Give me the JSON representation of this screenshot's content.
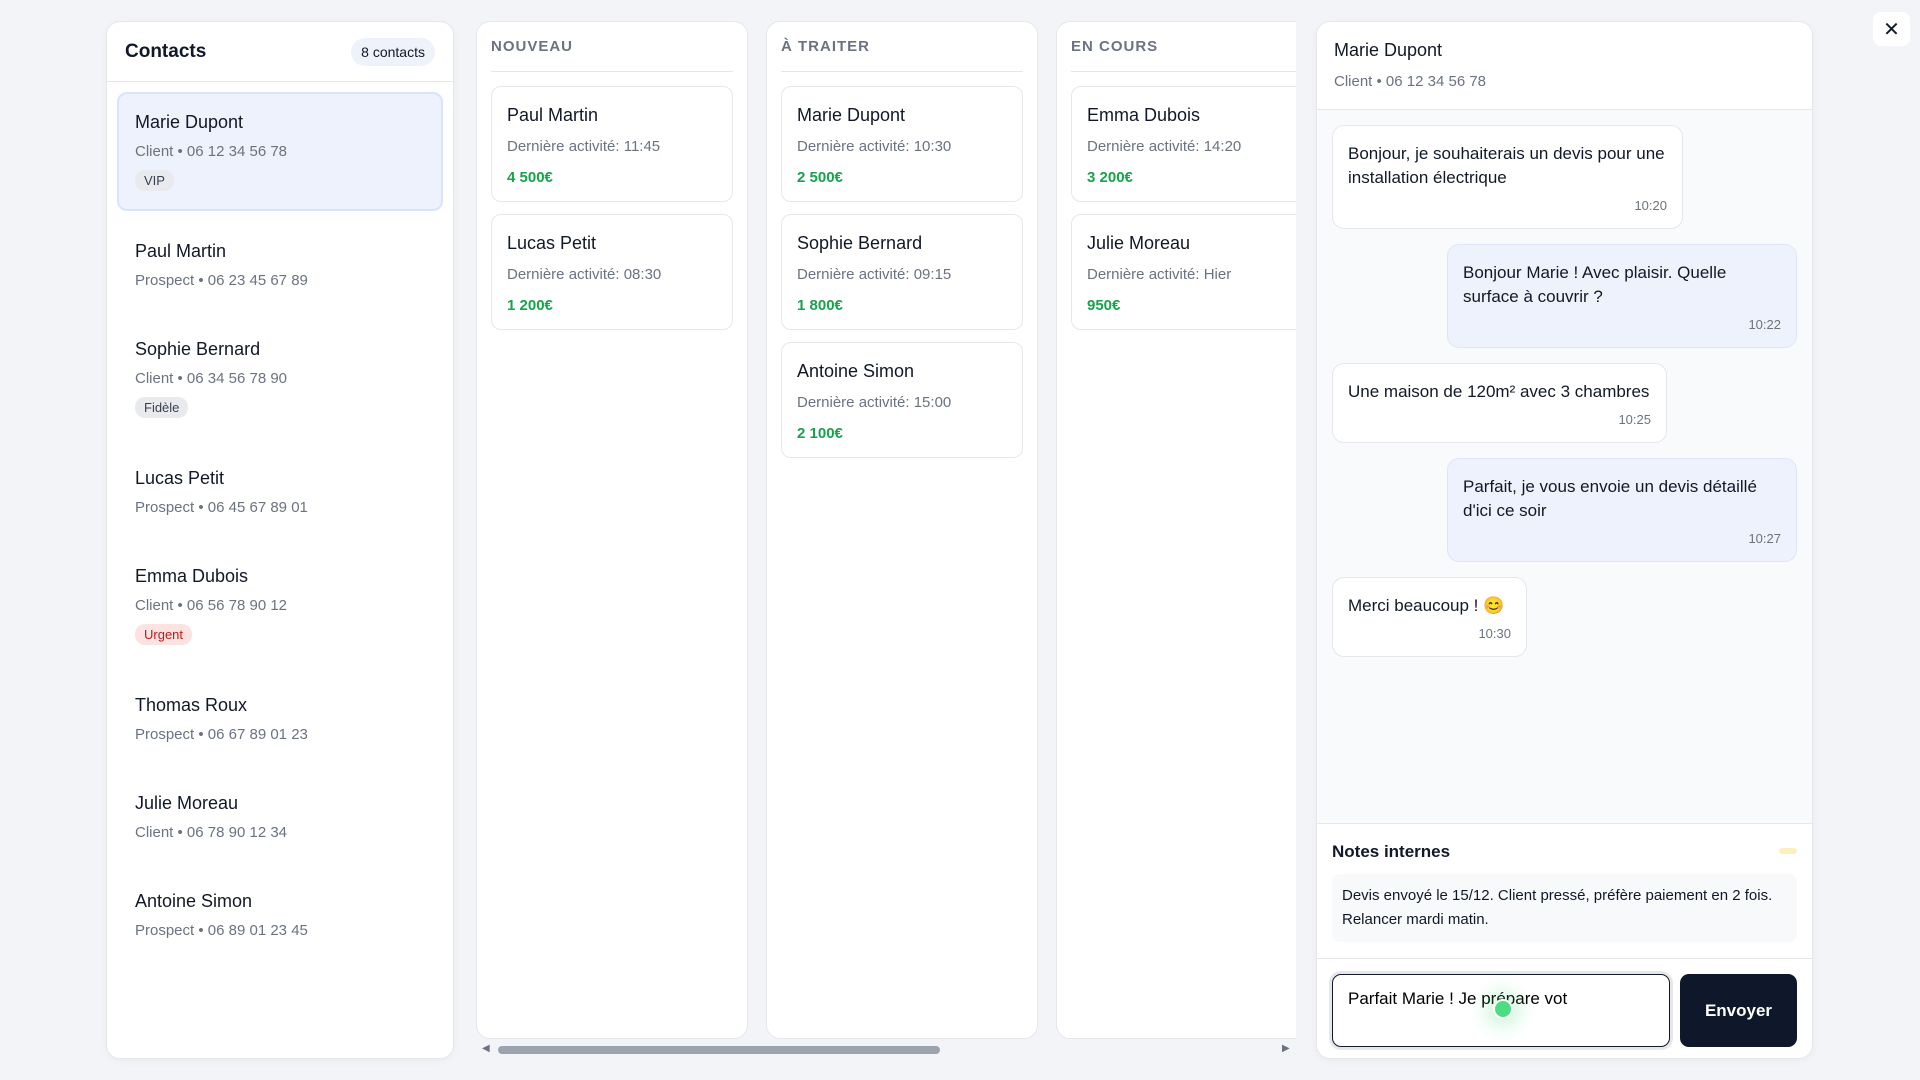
{
  "contacts": {
    "title": "Contacts",
    "count": "8 contacts",
    "items": [
      {
        "name": "Marie Dupont",
        "meta": "Client • 06 12 34 56 78",
        "tag": "VIP"
      },
      {
        "name": "Paul Martin",
        "meta": "Prospect • 06 23 45 67 89"
      },
      {
        "name": "Sophie Bernard",
        "meta": "Client • 06 34 56 78 90",
        "tag": "Fidèle"
      },
      {
        "name": "Lucas Petit",
        "meta": "Prospect • 06 45 67 89 01"
      },
      {
        "name": "Emma Dubois",
        "meta": "Client • 06 56 78 90 12",
        "tag": "Urgent"
      },
      {
        "name": "Thomas Roux",
        "meta": "Prospect • 06 67 89 01 23"
      },
      {
        "name": "Julie Moreau",
        "meta": "Client • 06 78 90 12 34"
      },
      {
        "name": "Antoine Simon",
        "meta": "Prospect • 06 89 01 23 45"
      }
    ]
  },
  "board": {
    "columns": [
      {
        "title": "NOUVEAU",
        "cards": [
          {
            "name": "Paul Martin",
            "activity": "Dernière activité: 11:45",
            "amount": "4 500€"
          },
          {
            "name": "Lucas Petit",
            "activity": "Dernière activité: 08:30",
            "amount": "1 200€"
          }
        ]
      },
      {
        "title": "À TRAITER",
        "cards": [
          {
            "name": "Marie Dupont",
            "activity": "Dernière activité: 10:30",
            "amount": "2 500€"
          },
          {
            "name": "Sophie Bernard",
            "activity": "Dernière activité: 09:15",
            "amount": "1 800€"
          },
          {
            "name": "Antoine Simon",
            "activity": "Dernière activité: 15:00",
            "amount": "2 100€"
          }
        ]
      },
      {
        "title": "EN COURS",
        "cards": [
          {
            "name": "Emma Dubois",
            "activity": "Dernière activité: 14:20",
            "amount": "3 200€"
          },
          {
            "name": "Julie Moreau",
            "activity": "Dernière activité: Hier",
            "amount": "950€"
          }
        ]
      }
    ]
  },
  "chat": {
    "name": "Marie Dupont",
    "meta": "Client • 06 12 34 56 78",
    "messages": [
      {
        "text": "Bonjour, je souhaiterais un devis pour une installation électrique",
        "time": "10:20",
        "dir": "in"
      },
      {
        "text": "Bonjour Marie ! Avec plaisir. Quelle surface à couvrir ?",
        "time": "10:22",
        "dir": "out"
      },
      {
        "text": "Une maison de 120m² avec 3 chambres",
        "time": "10:25",
        "dir": "in"
      },
      {
        "text": "Parfait, je vous envoie un devis détaillé d'ici ce soir",
        "time": "10:27",
        "dir": "out"
      },
      {
        "text": "Merci beaucoup ! 😊",
        "time": "10:30",
        "dir": "in"
      }
    ],
    "notes_title": "Notes internes",
    "notes": "Devis envoyé le 15/12. Client pressé, préfère paiement en 2 fois. Relancer mardi matin.",
    "input_value": "Parfait Marie ! Je prépare vot",
    "send_label": "Envoyer"
  },
  "close_icon": "✕"
}
